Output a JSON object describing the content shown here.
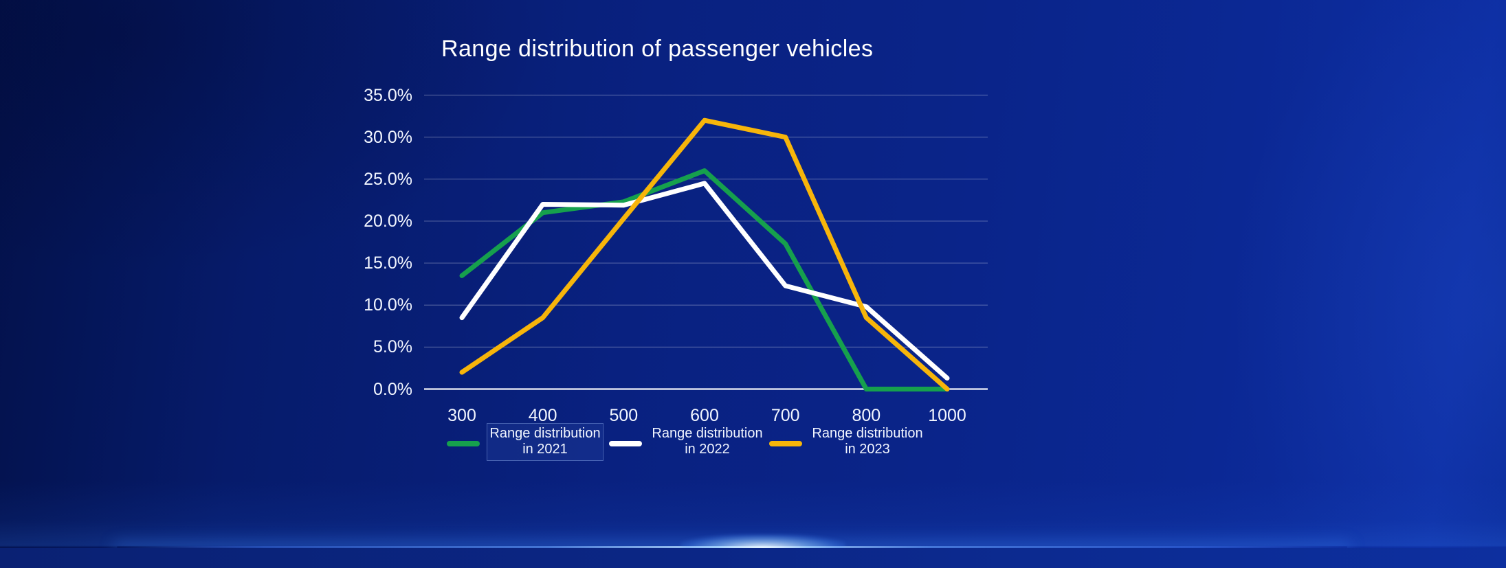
{
  "title": "Range distribution of passenger vehicles",
  "chart_data": {
    "type": "line",
    "title": "Range distribution of passenger vehicles",
    "categories": [
      300,
      400,
      500,
      600,
      700,
      800,
      1000
    ],
    "x_tick_labels": [
      "300",
      "400",
      "500",
      "600",
      "700",
      "800",
      "1000"
    ],
    "series": [
      {
        "name": "Range distribution in 2021",
        "year": "2021",
        "color": "#16A04D",
        "highlighted": true,
        "values": [
          13.5,
          21.0,
          22.3,
          26.0,
          17.3,
          0.0,
          0.0
        ]
      },
      {
        "name": "Range distribution in 2022",
        "year": "2022",
        "color": "#FFFFFF",
        "highlighted": false,
        "values": [
          8.5,
          22.0,
          21.9,
          24.5,
          12.3,
          9.8,
          1.3
        ]
      },
      {
        "name": "Range distribution in 2023",
        "year": "2023",
        "color": "#F7B50A",
        "highlighted": false,
        "values": [
          2.0,
          8.5,
          20.3,
          32.0,
          30.0,
          8.5,
          0.0
        ]
      }
    ],
    "ylim": [
      0,
      35
    ],
    "ytick_step": 5,
    "ytick_labels": [
      "0.0%",
      "5.0%",
      "10.0%",
      "15.0%",
      "20.0%",
      "25.0%",
      "30.0%",
      "35.0%"
    ],
    "grid": true,
    "legend_position": "bottom"
  },
  "colors": {
    "background_left": "#03114A",
    "background_right": "#0D2EA3",
    "gridline": "rgba(255,255,255,0.28)",
    "axis_line": "rgba(255,255,255,0.85)",
    "text": "#F2F6FF",
    "horizon_glow": "#BFE3FF"
  }
}
